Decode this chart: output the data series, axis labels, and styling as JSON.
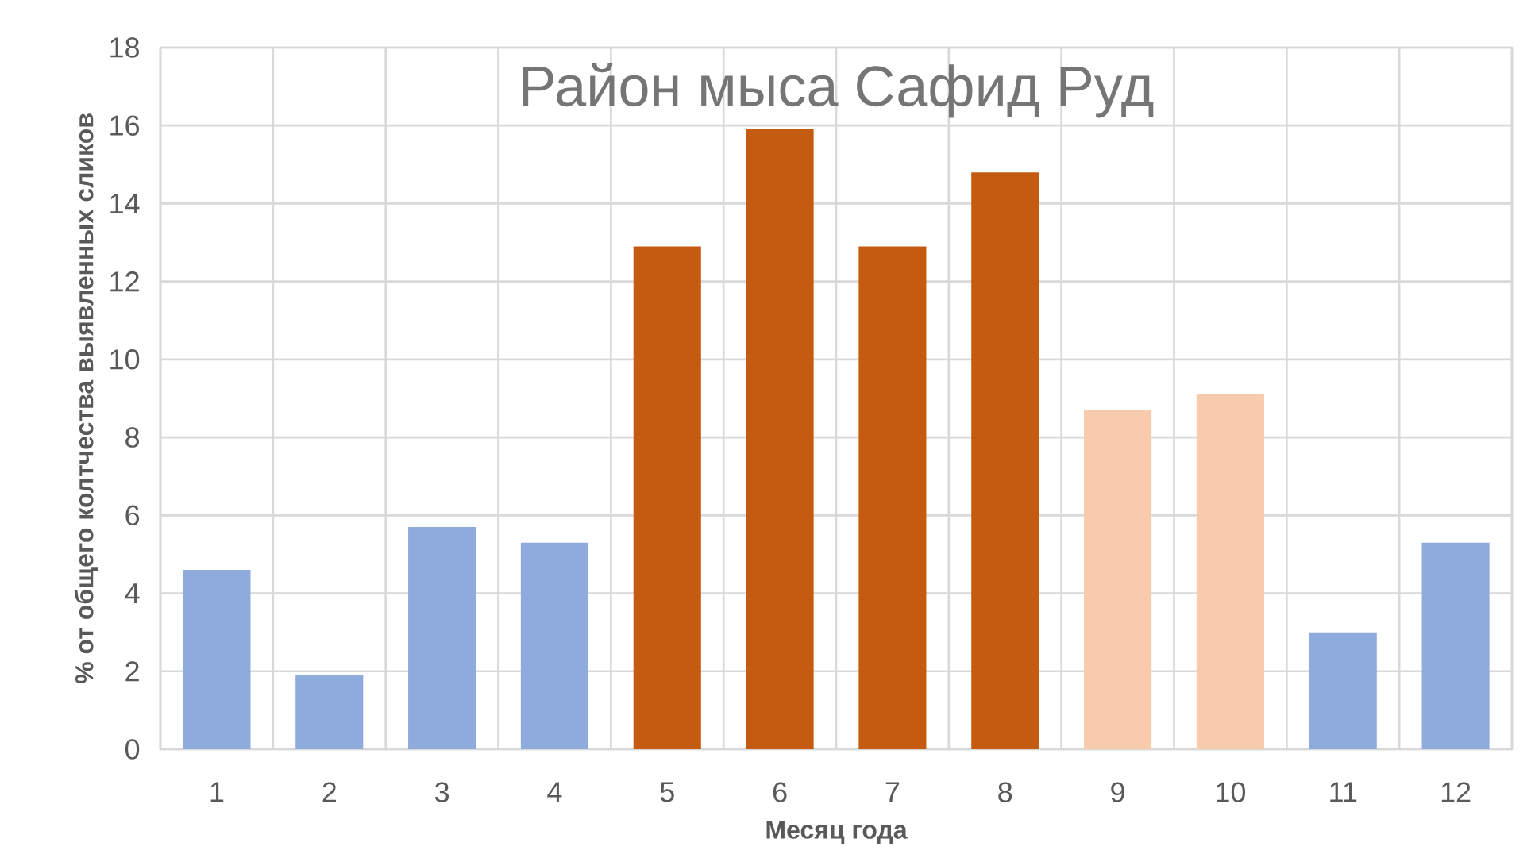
{
  "chart_data": {
    "type": "bar",
    "title": "Район мыса Сафид Руд",
    "xlabel": "Месяц года",
    "ylabel": "% от общего колтчества выявленных сликов",
    "categories": [
      "1",
      "2",
      "3",
      "4",
      "5",
      "6",
      "7",
      "8",
      "9",
      "10",
      "11",
      "12"
    ],
    "values": [
      4.6,
      1.9,
      5.7,
      5.3,
      12.9,
      15.9,
      12.9,
      14.8,
      8.7,
      9.1,
      3.0,
      5.3
    ],
    "colors": [
      "#8faadc",
      "#8faadc",
      "#8faadc",
      "#8faadc",
      "#c55a11",
      "#c55a11",
      "#c55a11",
      "#c55a11",
      "#f8cbad",
      "#f8cbad",
      "#8faadc",
      "#8faadc"
    ],
    "ylim": [
      0,
      18
    ],
    "yticks": [
      0,
      2,
      4,
      6,
      8,
      10,
      12,
      14,
      16,
      18
    ],
    "grid": true
  }
}
